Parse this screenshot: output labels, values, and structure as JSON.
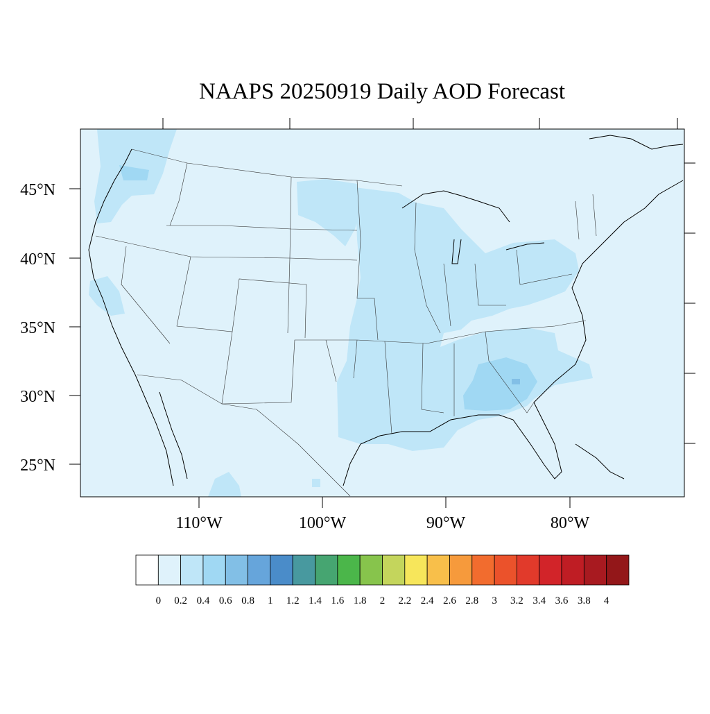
{
  "title": "NAAPS 20250919 Daily AOD Forecast",
  "y_ticks": [
    "45°N",
    "40°N",
    "35°N",
    "30°N",
    "25°N"
  ],
  "x_ticks": [
    "110°W",
    "100°W",
    "90°W",
    "80°W"
  ],
  "colorbar": {
    "labels": [
      "0",
      "0.2",
      "0.4",
      "0.6",
      "0.8",
      "1",
      "1.2",
      "1.4",
      "1.6",
      "1.8",
      "2",
      "2.2",
      "2.4",
      "2.6",
      "2.8",
      "3",
      "3.2",
      "3.4",
      "3.6",
      "3.8",
      "4"
    ],
    "colors": [
      "#ffffff",
      "#dff2fb",
      "#bfe6f8",
      "#a0d8f3",
      "#82bfe6",
      "#66a5db",
      "#4a8cc9",
      "#48999f",
      "#46a571",
      "#4bb64a",
      "#87c44c",
      "#c4d55c",
      "#f7e65b",
      "#f8bf4a",
      "#f69a3c",
      "#f26c2e",
      "#eb522b",
      "#e13a2b",
      "#d22429",
      "#bf1d24",
      "#a81a20",
      "#931719"
    ]
  },
  "colors": {
    "ocean_background": "#dff2fb",
    "level_0_4": "#bfe6f8",
    "level_0_6": "#a0d8f3",
    "level_0_8": "#82bfe6"
  }
}
